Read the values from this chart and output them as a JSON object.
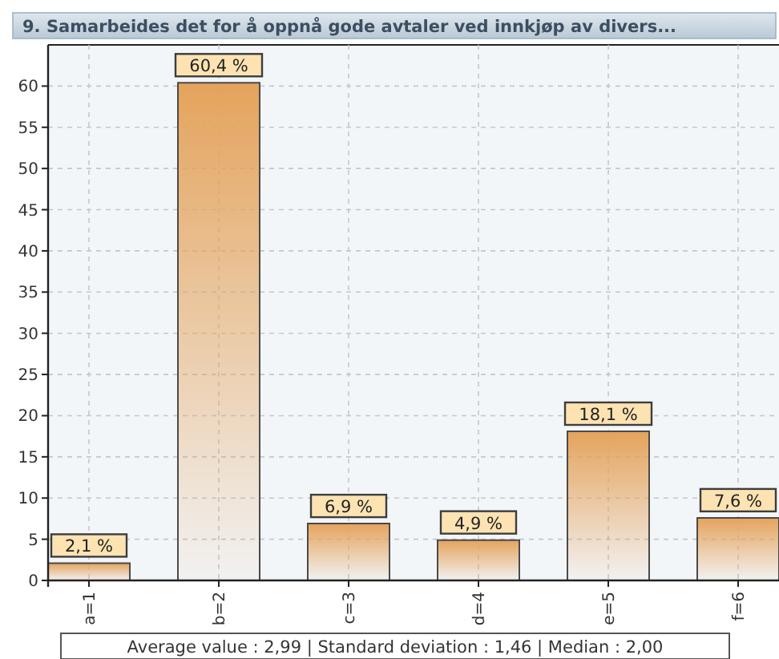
{
  "chart_data": {
    "type": "bar",
    "title": "9. Samarbeides det for å oppnå gode avtaler ved innkjøp av divers...",
    "categories": [
      "a=1",
      "b=2",
      "c=3",
      "d=4",
      "e=5",
      "f=6"
    ],
    "values": [
      2.1,
      60.4,
      6.9,
      4.9,
      18.1,
      7.6
    ],
    "value_labels": [
      "2,1 %",
      "60,4 %",
      "6,9 %",
      "4,9 %",
      "18,1 %",
      "7,6 %"
    ],
    "color": "#e4a35c",
    "ylim": [
      0,
      65
    ],
    "yticks": [
      0,
      5,
      10,
      15,
      20,
      25,
      30,
      35,
      40,
      45,
      50,
      55,
      60
    ],
    "grid": true,
    "annotations": [
      "Average value : 2,99 | Standard deviation : 1,46 | Median : 2,00"
    ]
  }
}
